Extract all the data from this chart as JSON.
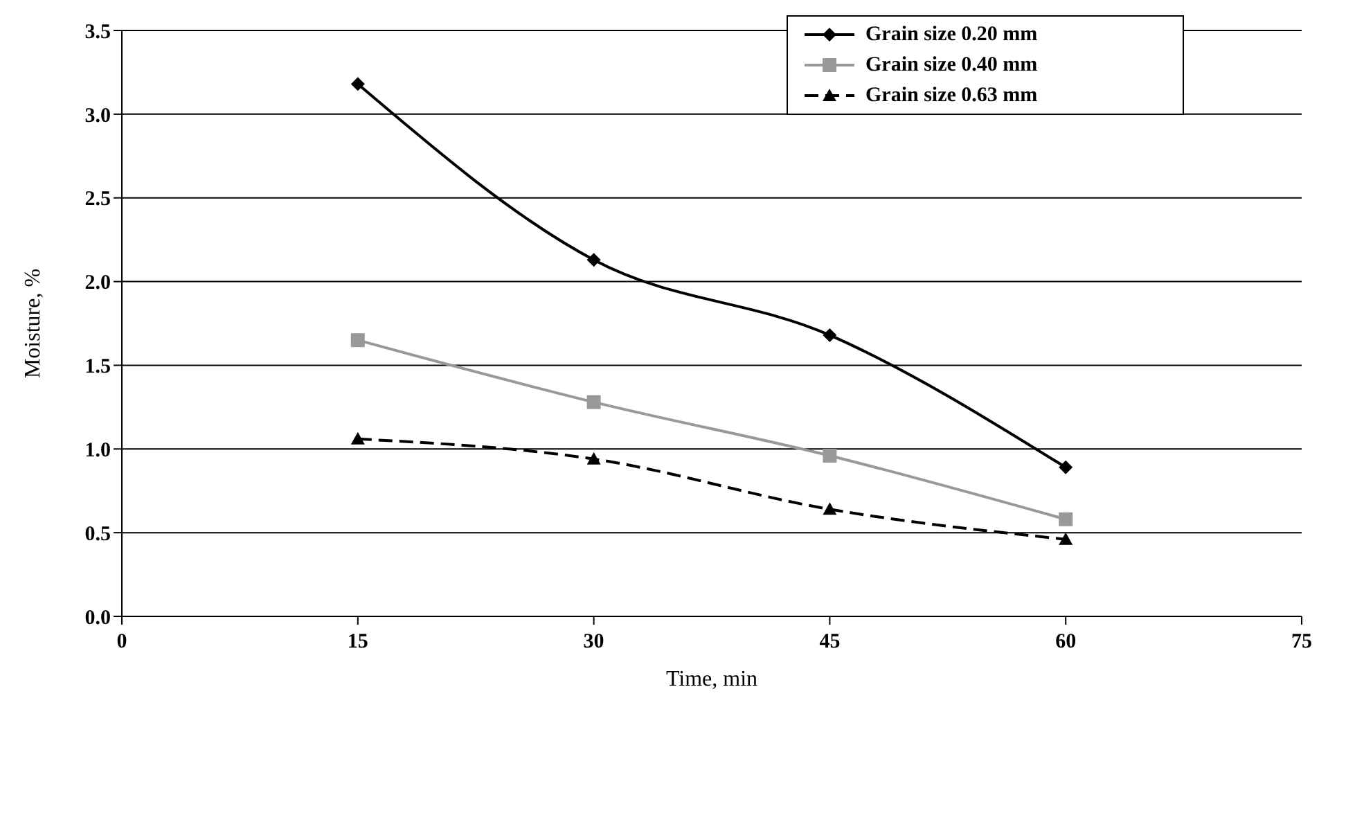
{
  "chart_data": {
    "type": "line",
    "xlabel": "Time, min",
    "ylabel": "Moisture, %",
    "x": [
      15,
      30,
      45,
      60
    ],
    "series": [
      {
        "name": "Grain size 0.20 mm",
        "color": "#000000",
        "values": [
          3.18,
          2.13,
          1.68,
          0.89
        ],
        "marker": "diamond",
        "line_style": "solid"
      },
      {
        "name": "Grain size 0.40 mm",
        "color": "#999999",
        "values": [
          1.65,
          1.28,
          0.96,
          0.58
        ],
        "marker": "square",
        "line_style": "solid"
      },
      {
        "name": "Grain size 0.63 mm",
        "color": "#000000",
        "values": [
          1.06,
          0.94,
          0.64,
          0.46
        ],
        "marker": "triangle",
        "line_style": "dashed"
      }
    ],
    "xlim": [
      0,
      75
    ],
    "xticks": [
      0,
      15,
      30,
      45,
      60,
      75
    ],
    "ylim": [
      0,
      3.5
    ],
    "yticks": [
      {
        "value": 0,
        "label": "0.0"
      },
      0.5,
      {
        "value": 1,
        "label": "1.0"
      },
      1.5,
      {
        "value": 2,
        "label": "2.0"
      },
      2.5,
      {
        "value": 3,
        "label": "3.0"
      },
      3.5
    ],
    "grid": "y",
    "legend": "top right"
  }
}
